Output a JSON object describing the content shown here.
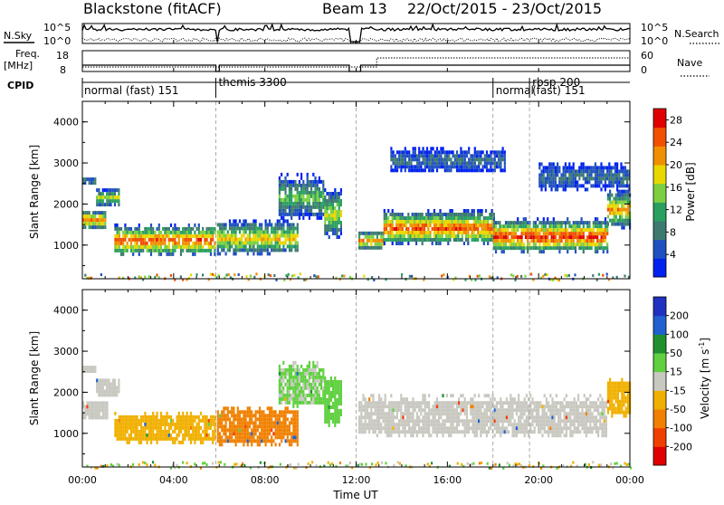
{
  "header": {
    "title": "Blackstone (fitACF)",
    "beam": "Beam 13",
    "date_range": "22/Oct/2015 - 23/Oct/2015"
  },
  "top_panels": {
    "nsky_label": "N.Sky",
    "nsky_ticks": [
      "10^5",
      "10^0"
    ],
    "nsearch_label": "N.Search",
    "nsearch_ticks": [
      "10^5",
      "10^0"
    ],
    "freq_label": "Freq.",
    "freq_unit": "[MHz]",
    "freq_ticks": [
      "18",
      "8"
    ],
    "nave_label": "Nave",
    "nave_ticks": [
      "60",
      "0"
    ],
    "cpid_label": "CPID"
  },
  "cpid_segments": [
    {
      "label": "normal (fast) 151",
      "start_hour": 0.0,
      "end_hour": 5.85
    },
    {
      "label": "themis 3300",
      "start_hour": 5.85,
      "end_hour": 12.0
    },
    {
      "label": "normal",
      "start_hour": 18.0,
      "end_hour": 19.6
    },
    {
      "label": "rbsp 200",
      "start_hour": 19.6,
      "end_hour": 24.0
    },
    {
      "label": "(fast) 151",
      "start_hour": 19.6,
      "end_hour": 24.0
    }
  ],
  "colors": {
    "power_scale": [
      "#0022ee",
      "#2050c0",
      "#3c7a70",
      "#2aa060",
      "#7cd040",
      "#e8d800",
      "#f09000",
      "#f05000",
      "#e00000"
    ],
    "velocity_scale": [
      "#2030c0",
      "#2060d0",
      "#1f9030",
      "#60d040",
      "#c8c8c0",
      "#f0b000",
      "#f08000",
      "#f04000",
      "#e00000"
    ]
  },
  "chart_data": [
    {
      "type": "heatmap",
      "name": "power",
      "xlabel": "",
      "ylabel": "Slant Range [km]",
      "x_ticks": [
        "00:00",
        "04:00",
        "08:00",
        "12:00",
        "16:00",
        "20:00",
        "00:00"
      ],
      "xlim_hours": [
        0,
        24
      ],
      "y_ticks": [
        1000,
        2000,
        3000,
        4000
      ],
      "ylim": [
        180,
        4500
      ],
      "colorbar_label": "Power [dB]",
      "colorbar_ticks": [
        4,
        8,
        12,
        16,
        20,
        24,
        28
      ],
      "colorbar_range": [
        0,
        30
      ],
      "scatter_bands": [
        {
          "start_hour": 0.0,
          "end_hour": 1.0,
          "range_center_km": 1650,
          "half_width_km": 200,
          "peak_db": 24
        },
        {
          "start_hour": 0.6,
          "end_hour": 1.6,
          "range_center_km": 2200,
          "half_width_km": 200,
          "peak_db": 16
        },
        {
          "start_hour": 0.0,
          "end_hour": 0.6,
          "range_center_km": 2600,
          "half_width_km": 100,
          "peak_db": 10
        },
        {
          "start_hour": 1.4,
          "end_hour": 5.8,
          "range_center_km": 1150,
          "half_width_km": 320,
          "peak_db": 26
        },
        {
          "start_hour": 5.9,
          "end_hour": 9.4,
          "range_center_km": 1200,
          "half_width_km": 350,
          "peak_db": 20
        },
        {
          "start_hour": 8.6,
          "end_hour": 10.6,
          "range_center_km": 2200,
          "half_width_km": 450,
          "peak_db": 14
        },
        {
          "start_hour": 10.6,
          "end_hour": 11.3,
          "range_center_km": 1800,
          "half_width_km": 500,
          "peak_db": 18
        },
        {
          "start_hour": 12.1,
          "end_hour": 13.2,
          "range_center_km": 1150,
          "half_width_km": 200,
          "peak_db": 22
        },
        {
          "start_hour": 13.2,
          "end_hour": 18.0,
          "range_center_km": 1450,
          "half_width_km": 350,
          "peak_db": 26
        },
        {
          "start_hour": 18.0,
          "end_hour": 23.0,
          "range_center_km": 1250,
          "half_width_km": 350,
          "peak_db": 28
        },
        {
          "start_hour": 23.0,
          "end_hour": 24.0,
          "range_center_km": 1900,
          "half_width_km": 400,
          "peak_db": 22
        },
        {
          "start_hour": 13.5,
          "end_hour": 18.5,
          "range_center_km": 3100,
          "half_width_km": 250,
          "peak_db": 8
        },
        {
          "start_hour": 20.0,
          "end_hour": 24.0,
          "range_center_km": 2700,
          "half_width_km": 300,
          "peak_db": 8
        }
      ]
    },
    {
      "type": "heatmap",
      "name": "velocity",
      "xlabel": "Time UT",
      "ylabel": "Slant Range [km]",
      "x_ticks": [
        "00:00",
        "04:00",
        "08:00",
        "12:00",
        "16:00",
        "20:00",
        "00:00"
      ],
      "xlim_hours": [
        0,
        24
      ],
      "y_ticks": [
        1000,
        2000,
        3000,
        4000
      ],
      "ylim": [
        180,
        4500
      ],
      "colorbar_label": "Velocity [m s",
      "colorbar_label_sup": "-1",
      "colorbar_label_tail": "]",
      "colorbar_ticks": [
        200,
        100,
        50,
        15,
        -15,
        -50,
        -100,
        -200
      ],
      "scatter_bands": [
        {
          "start_hour": 0.0,
          "end_hour": 1.1,
          "range_center_km": 1600,
          "half_width_km": 200,
          "velocity": 0
        },
        {
          "start_hour": 0.6,
          "end_hour": 1.6,
          "range_center_km": 2150,
          "half_width_km": 200,
          "velocity": 0
        },
        {
          "start_hour": 0.0,
          "end_hour": 0.6,
          "range_center_km": 2600,
          "half_width_km": 100,
          "velocity": 0
        },
        {
          "start_hour": 1.4,
          "end_hour": 5.8,
          "range_center_km": 1150,
          "half_width_km": 320,
          "velocity": -40
        },
        {
          "start_hour": 5.9,
          "end_hour": 9.4,
          "range_center_km": 1200,
          "half_width_km": 400,
          "velocity": -60
        },
        {
          "start_hour": 8.6,
          "end_hour": 10.6,
          "range_center_km": 2200,
          "half_width_km": 450,
          "velocity": 20
        },
        {
          "start_hour": 10.6,
          "end_hour": 11.3,
          "range_center_km": 1800,
          "half_width_km": 500,
          "velocity": 40
        },
        {
          "start_hour": 12.1,
          "end_hour": 23.0,
          "range_center_km": 1450,
          "half_width_km": 420,
          "velocity": 0
        },
        {
          "start_hour": 23.0,
          "end_hour": 24.0,
          "range_center_km": 1900,
          "half_width_km": 400,
          "velocity": -40
        }
      ]
    }
  ]
}
